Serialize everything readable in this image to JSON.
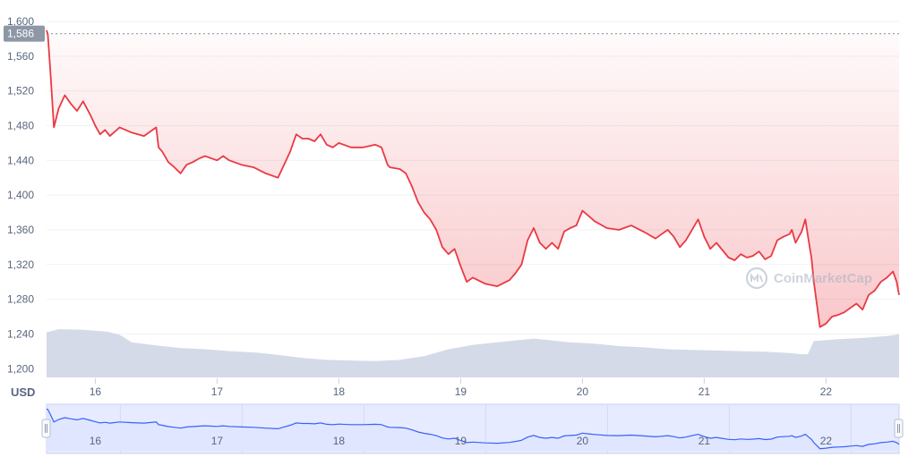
{
  "chart_data": {
    "type": "line",
    "unit_label": "USD",
    "watermark": "CoinMarketCap",
    "current_price_label": "1,586",
    "current_price": 1586,
    "ylim": [
      1190,
      1600
    ],
    "y_ticks": [
      1200,
      1240,
      1280,
      1320,
      1360,
      1400,
      1440,
      1480,
      1520,
      1560,
      1600
    ],
    "y_tick_labels": [
      "1,200",
      "1,240",
      "1,280",
      "1,320",
      "1,360",
      "1,400",
      "1,440",
      "1,480",
      "1,520",
      "1,560",
      "1,600"
    ],
    "xlim": [
      15.6,
      22.6
    ],
    "x_ticks": [
      16,
      17,
      18,
      19,
      20,
      21,
      22
    ],
    "x_tick_labels": [
      "16",
      "17",
      "18",
      "19",
      "20",
      "21",
      "22"
    ],
    "grid": true,
    "colors": {
      "price_line": "#ea3943",
      "area_fill": "#ea3943",
      "volume": "#cfd6e4",
      "navigator_line": "#3861fb",
      "navigator_fill": "#dfe5ff",
      "current_price_badge": "#8d97a6"
    },
    "price_series": {
      "name": "Price",
      "x": [
        15.6,
        15.61,
        15.63,
        15.66,
        15.7,
        15.75,
        15.8,
        15.85,
        15.9,
        15.96,
        16.0,
        16.04,
        16.08,
        16.12,
        16.2,
        16.3,
        16.4,
        16.5,
        16.52,
        16.55,
        16.6,
        16.65,
        16.7,
        16.75,
        16.8,
        16.85,
        16.9,
        17.0,
        17.05,
        17.1,
        17.2,
        17.3,
        17.4,
        17.5,
        17.55,
        17.6,
        17.65,
        17.7,
        17.75,
        17.8,
        17.85,
        17.9,
        17.95,
        18.0,
        18.1,
        18.2,
        18.3,
        18.35,
        18.4,
        18.42,
        18.5,
        18.55,
        18.6,
        18.65,
        18.7,
        18.75,
        18.8,
        18.85,
        18.9,
        18.95,
        19.0,
        19.05,
        19.1,
        19.2,
        19.3,
        19.4,
        19.45,
        19.5,
        19.55,
        19.6,
        19.65,
        19.7,
        19.75,
        19.8,
        19.85,
        19.9,
        19.95,
        20.0,
        20.05,
        20.1,
        20.2,
        20.3,
        20.4,
        20.5,
        20.6,
        20.65,
        20.7,
        20.75,
        20.8,
        20.85,
        20.9,
        20.95,
        21.0,
        21.05,
        21.1,
        21.2,
        21.25,
        21.3,
        21.35,
        21.4,
        21.45,
        21.5,
        21.55,
        21.6,
        21.65,
        21.7,
        21.72,
        21.75,
        21.8,
        21.83,
        21.86,
        21.88,
        21.9,
        21.95,
        22.0,
        22.05,
        22.1,
        22.15,
        22.2,
        22.25,
        22.3,
        22.35,
        22.4,
        22.45,
        22.5,
        22.55,
        22.58,
        22.6
      ],
      "values": [
        1590,
        1585,
        1545,
        1478,
        1500,
        1515,
        1505,
        1497,
        1508,
        1492,
        1480,
        1470,
        1475,
        1468,
        1478,
        1472,
        1468,
        1478,
        1455,
        1450,
        1438,
        1432,
        1425,
        1435,
        1438,
        1442,
        1445,
        1440,
        1445,
        1440,
        1435,
        1432,
        1425,
        1420,
        1435,
        1450,
        1470,
        1465,
        1465,
        1462,
        1470,
        1458,
        1455,
        1460,
        1455,
        1455,
        1458,
        1455,
        1435,
        1432,
        1430,
        1425,
        1410,
        1392,
        1380,
        1372,
        1360,
        1340,
        1332,
        1338,
        1318,
        1300,
        1305,
        1298,
        1295,
        1302,
        1310,
        1320,
        1348,
        1362,
        1345,
        1338,
        1345,
        1338,
        1358,
        1362,
        1365,
        1382,
        1376,
        1370,
        1362,
        1360,
        1365,
        1358,
        1350,
        1355,
        1360,
        1352,
        1340,
        1348,
        1360,
        1372,
        1352,
        1338,
        1345,
        1328,
        1325,
        1332,
        1328,
        1330,
        1335,
        1326,
        1330,
        1348,
        1352,
        1355,
        1360,
        1345,
        1358,
        1372,
        1345,
        1328,
        1300,
        1248,
        1252,
        1260,
        1262,
        1265,
        1270,
        1275,
        1268,
        1285,
        1290,
        1300,
        1305,
        1312,
        1300,
        1285
      ]
    },
    "volume_series": {
      "name": "Volume",
      "x": [
        15.6,
        15.7,
        15.9,
        16.1,
        16.2,
        16.3,
        16.5,
        16.7,
        16.9,
        17.1,
        17.3,
        17.5,
        17.7,
        17.9,
        18.1,
        18.3,
        18.5,
        18.7,
        18.9,
        19.1,
        19.3,
        19.5,
        19.6,
        19.7,
        19.9,
        20.1,
        20.3,
        20.5,
        20.7,
        20.9,
        21.1,
        21.3,
        21.5,
        21.7,
        21.8,
        21.85,
        21.9,
        22.1,
        22.3,
        22.5,
        22.6
      ],
      "values": [
        0.72,
        0.77,
        0.76,
        0.73,
        0.68,
        0.56,
        0.51,
        0.47,
        0.45,
        0.42,
        0.4,
        0.36,
        0.31,
        0.28,
        0.27,
        0.26,
        0.28,
        0.34,
        0.45,
        0.52,
        0.56,
        0.6,
        0.62,
        0.6,
        0.56,
        0.54,
        0.5,
        0.48,
        0.45,
        0.44,
        0.43,
        0.42,
        0.41,
        0.39,
        0.37,
        0.37,
        0.58,
        0.61,
        0.63,
        0.66,
        0.69
      ]
    }
  }
}
